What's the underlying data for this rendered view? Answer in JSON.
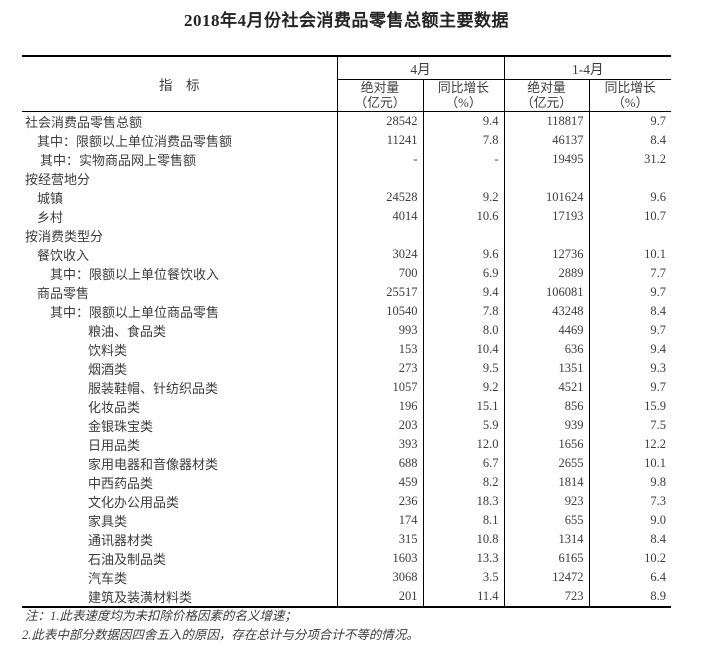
{
  "title": "2018年4月份社会消费品零售总额主要数据",
  "table": {
    "header": {
      "indicator": "指　标",
      "april": "4月",
      "jan_apr": "1-4月",
      "abs_label": "绝对量\n（亿元）",
      "growth_label": "同比增长\n（%）"
    },
    "rows": [
      {
        "label": "社会消费品零售总额",
        "indent": 0,
        "apr_abs": "28542",
        "apr_growth": "9.4",
        "ytd_abs": "118817",
        "ytd_growth": "9.7"
      },
      {
        "label": "其中：限额以上单位消费品零售额",
        "indent": 1,
        "apr_abs": "11241",
        "apr_growth": "7.8",
        "ytd_abs": "46137",
        "ytd_growth": "8.4"
      },
      {
        "label": "其中：实物商品网上零售额",
        "indent": 2,
        "apr_abs": "-",
        "apr_growth": "-",
        "ytd_abs": "19495",
        "ytd_growth": "31.2"
      },
      {
        "label": "按经营地分",
        "indent": 0,
        "apr_abs": "",
        "apr_growth": "",
        "ytd_abs": "",
        "ytd_growth": ""
      },
      {
        "label": "城镇",
        "indent": 1,
        "apr_abs": "24528",
        "apr_growth": "9.2",
        "ytd_abs": "101624",
        "ytd_growth": "9.6"
      },
      {
        "label": "乡村",
        "indent": 1,
        "apr_abs": "4014",
        "apr_growth": "10.6",
        "ytd_abs": "17193",
        "ytd_growth": "10.7"
      },
      {
        "label": "按消费类型分",
        "indent": 0,
        "apr_abs": "",
        "apr_growth": "",
        "ytd_abs": "",
        "ytd_growth": ""
      },
      {
        "label": "餐饮收入",
        "indent": 1,
        "apr_abs": "3024",
        "apr_growth": "9.6",
        "ytd_abs": "12736",
        "ytd_growth": "10.1"
      },
      {
        "label": "其中：限额以上单位餐饮收入",
        "indent": 3,
        "apr_abs": "700",
        "apr_growth": "6.9",
        "ytd_abs": "2889",
        "ytd_growth": "7.7"
      },
      {
        "label": "商品零售",
        "indent": 1,
        "apr_abs": "25517",
        "apr_growth": "9.4",
        "ytd_abs": "106081",
        "ytd_growth": "9.7"
      },
      {
        "label": "其中：限额以上单位商品零售",
        "indent": 3,
        "apr_abs": "10540",
        "apr_growth": "7.8",
        "ytd_abs": "43248",
        "ytd_growth": "8.4"
      },
      {
        "label": "粮油、食品类",
        "indent": 4,
        "apr_abs": "993",
        "apr_growth": "8.0",
        "ytd_abs": "4469",
        "ytd_growth": "9.7"
      },
      {
        "label": "饮料类",
        "indent": 4,
        "apr_abs": "153",
        "apr_growth": "10.4",
        "ytd_abs": "636",
        "ytd_growth": "9.4"
      },
      {
        "label": "烟酒类",
        "indent": 4,
        "apr_abs": "273",
        "apr_growth": "9.5",
        "ytd_abs": "1351",
        "ytd_growth": "9.3"
      },
      {
        "label": "服装鞋帽、针纺织品类",
        "indent": 4,
        "apr_abs": "1057",
        "apr_growth": "9.2",
        "ytd_abs": "4521",
        "ytd_growth": "9.7"
      },
      {
        "label": "化妆品类",
        "indent": 4,
        "apr_abs": "196",
        "apr_growth": "15.1",
        "ytd_abs": "856",
        "ytd_growth": "15.9"
      },
      {
        "label": "金银珠宝类",
        "indent": 4,
        "apr_abs": "203",
        "apr_growth": "5.9",
        "ytd_abs": "939",
        "ytd_growth": "7.5"
      },
      {
        "label": "日用品类",
        "indent": 4,
        "apr_abs": "393",
        "apr_growth": "12.0",
        "ytd_abs": "1656",
        "ytd_growth": "12.2"
      },
      {
        "label": "家用电器和音像器材类",
        "indent": 4,
        "apr_abs": "688",
        "apr_growth": "6.7",
        "ytd_abs": "2655",
        "ytd_growth": "10.1"
      },
      {
        "label": "中西药品类",
        "indent": 4,
        "apr_abs": "459",
        "apr_growth": "8.2",
        "ytd_abs": "1814",
        "ytd_growth": "9.8"
      },
      {
        "label": "文化办公用品类",
        "indent": 4,
        "apr_abs": "236",
        "apr_growth": "18.3",
        "ytd_abs": "923",
        "ytd_growth": "7.3"
      },
      {
        "label": "家具类",
        "indent": 4,
        "apr_abs": "174",
        "apr_growth": "8.1",
        "ytd_abs": "655",
        "ytd_growth": "9.0"
      },
      {
        "label": "通讯器材类",
        "indent": 4,
        "apr_abs": "315",
        "apr_growth": "10.8",
        "ytd_abs": "1314",
        "ytd_growth": "8.4"
      },
      {
        "label": "石油及制品类",
        "indent": 4,
        "apr_abs": "1603",
        "apr_growth": "13.3",
        "ytd_abs": "6165",
        "ytd_growth": "10.2"
      },
      {
        "label": "汽车类",
        "indent": 4,
        "apr_abs": "3068",
        "apr_growth": "3.5",
        "ytd_abs": "12472",
        "ytd_growth": "6.4"
      },
      {
        "label": "建筑及装潢材料类",
        "indent": 4,
        "apr_abs": "201",
        "apr_growth": "11.4",
        "ytd_abs": "723",
        "ytd_growth": "8.9"
      }
    ]
  },
  "notes": [
    "注：1.此表速度均为未扣除价格因素的名义增速；",
    "2.此表中部分数据因四舍五入的原因，存在总计与分项合计不等的情况。"
  ],
  "colors": {
    "text": "#3c3c3c",
    "border": "#000000",
    "background": "#ffffff"
  }
}
